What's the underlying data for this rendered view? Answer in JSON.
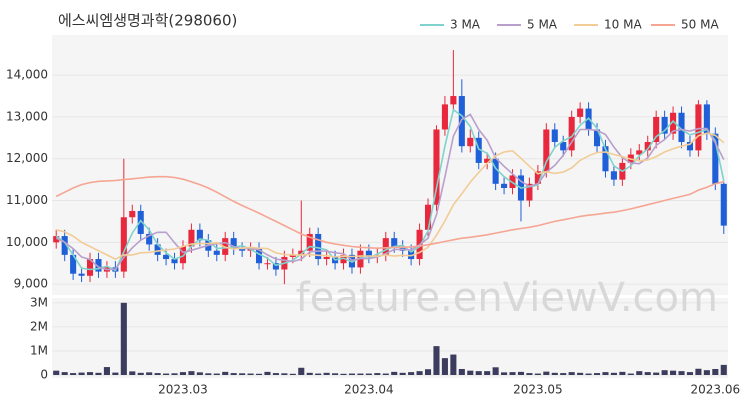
{
  "chart_data": [
    {
      "type": "candlestick",
      "title": "에스씨엠생명과학(298060)",
      "watermark": "feature.enViewV.com",
      "up_color": "#e8283c",
      "down_color": "#1f5fd8",
      "grid": true,
      "legend_position": "top-right",
      "ylim": [
        8740,
        14960
      ],
      "yticks": [
        {
          "value": 9000,
          "label": "9,000"
        },
        {
          "value": 10000,
          "label": "10,000"
        },
        {
          "value": 11000,
          "label": "11,000"
        },
        {
          "value": 12000,
          "label": "12,000"
        },
        {
          "value": 13000,
          "label": "13,000"
        },
        {
          "value": 14000,
          "label": "14,000"
        }
      ],
      "open": [
        10000,
        10150,
        9700,
        9250,
        9200,
        9600,
        9300,
        9400,
        9300,
        10600,
        10750,
        10200,
        9950,
        9700,
        9600,
        9500,
        9900,
        10300,
        10050,
        9800,
        9700,
        10100,
        9850,
        9800,
        9850,
        9500,
        9500,
        9350,
        9650,
        9700,
        9800,
        10200,
        9600,
        9650,
        9500,
        9700,
        9400,
        9800,
        9650,
        9700,
        10100,
        9900,
        9800,
        9600,
        10300,
        10900,
        12700,
        13300,
        13500,
        12300,
        12500,
        11900,
        12000,
        11400,
        11300,
        11600,
        11000,
        11400,
        11700,
        12700,
        12400,
        12200,
        13000,
        13200,
        12700,
        12300,
        11700,
        11500,
        11900,
        12100,
        12200,
        12400,
        13000,
        12600,
        13100,
        12400,
        12200,
        13300,
        12600,
        11400
      ],
      "high": [
        10300,
        10300,
        9850,
        9400,
        9750,
        9750,
        9550,
        9550,
        12000,
        10900,
        10900,
        10350,
        10100,
        9850,
        9750,
        10050,
        10450,
        10450,
        10200,
        9950,
        10250,
        10250,
        10000,
        10000,
        10000,
        9650,
        9650,
        9800,
        9850,
        11000,
        10350,
        10350,
        9800,
        9800,
        9850,
        9850,
        9950,
        9950,
        9850,
        10250,
        10250,
        10050,
        9950,
        10450,
        11050,
        12800,
        13500,
        14600,
        13900,
        12700,
        12650,
        12150,
        12150,
        11550,
        11750,
        11750,
        11550,
        11850,
        12850,
        12850,
        12550,
        13150,
        13350,
        13350,
        12850,
        12450,
        11850,
        12050,
        12250,
        12350,
        12550,
        13150,
        13150,
        13250,
        13250,
        12550,
        13400,
        13400,
        12750,
        11450
      ],
      "low": [
        9850,
        9550,
        9100,
        9050,
        9050,
        9150,
        9150,
        9150,
        9150,
        10450,
        10050,
        9800,
        9550,
        9450,
        9350,
        9350,
        9750,
        9900,
        9650,
        9550,
        9550,
        9700,
        9650,
        9650,
        9350,
        9350,
        9200,
        9000,
        9500,
        9550,
        9650,
        9450,
        9450,
        9350,
        9350,
        9250,
        9250,
        9500,
        9500,
        9550,
        9750,
        9650,
        9450,
        9450,
        10150,
        10750,
        12550,
        13150,
        12150,
        12150,
        11750,
        11750,
        11250,
        11150,
        11150,
        10500,
        10850,
        11250,
        11550,
        12250,
        12050,
        12050,
        12850,
        12550,
        12150,
        11550,
        11350,
        11350,
        11750,
        11950,
        12050,
        12250,
        12450,
        12450,
        12250,
        12050,
        12050,
        12450,
        11250,
        10200
      ],
      "close": [
        10150,
        9700,
        9250,
        9200,
        9600,
        9300,
        9400,
        9300,
        10600,
        10750,
        10200,
        9950,
        9700,
        9600,
        9500,
        9900,
        10300,
        10050,
        9800,
        9700,
        10100,
        9850,
        9800,
        9850,
        9500,
        9500,
        9350,
        9650,
        9700,
        9800,
        10200,
        9600,
        9650,
        9500,
        9700,
        9400,
        9800,
        9650,
        9700,
        10100,
        9900,
        9800,
        9600,
        10300,
        10900,
        12700,
        13300,
        13500,
        12300,
        12500,
        11900,
        12000,
        11400,
        11300,
        11600,
        11000,
        11400,
        11700,
        12700,
        12400,
        12200,
        13000,
        13200,
        12700,
        12300,
        11700,
        11500,
        11900,
        12100,
        12200,
        12400,
        13000,
        12600,
        13100,
        12400,
        12200,
        13300,
        12600,
        11400,
        10400
      ],
      "series": [
        {
          "name": "3 MA",
          "color": "#7fd3cc",
          "values": [
            10150,
            10000,
            9700,
            9380,
            9350,
            9370,
            9430,
            9330,
            9770,
            10220,
            10520,
            10300,
            9950,
            9750,
            9600,
            9670,
            9900,
            10080,
            10050,
            9850,
            9870,
            9880,
            9920,
            9830,
            9720,
            9620,
            9450,
            9500,
            9570,
            9720,
            9900,
            9870,
            9820,
            9580,
            9620,
            9530,
            9630,
            9620,
            9720,
            9820,
            9900,
            9930,
            9770,
            9900,
            10270,
            11300,
            12300,
            13170,
            13030,
            12770,
            12230,
            12130,
            11770,
            11570,
            11430,
            11300,
            11330,
            11370,
            11930,
            12270,
            12430,
            12530,
            12800,
            12970,
            12730,
            12230,
            11830,
            11700,
            11830,
            12070,
            12230,
            12530,
            12670,
            12900,
            12700,
            12570,
            12630,
            12700,
            12430,
            11470
          ]
        },
        {
          "name": "5 MA",
          "color": "#b9a0cc",
          "values": [
            10100,
            10000,
            9850,
            9650,
            9590,
            9410,
            9350,
            9360,
            9640,
            9870,
            10050,
            10160,
            10240,
            10240,
            9990,
            9760,
            9810,
            9870,
            9930,
            9970,
            9990,
            9900,
            9850,
            9860,
            9820,
            9700,
            9600,
            9570,
            9540,
            9600,
            9770,
            9790,
            9790,
            9750,
            9730,
            9570,
            9610,
            9610,
            9650,
            9730,
            9830,
            9830,
            9820,
            9940,
            10100,
            10660,
            11560,
            12540,
            12940,
            13060,
            12700,
            12440,
            12020,
            11820,
            11640,
            11460,
            11340,
            11400,
            11680,
            11840,
            12080,
            12400,
            12700,
            12700,
            12680,
            12580,
            12280,
            12020,
            11900,
            11880,
            12020,
            12320,
            12460,
            12660,
            12700,
            12660,
            12720,
            12720,
            12380,
            11980
          ]
        },
        {
          "name": "10 MA",
          "color": "#f2cc96",
          "values": [
            10300,
            10250,
            10150,
            10000,
            9900,
            9800,
            9700,
            9600,
            9700,
            9700,
            9750,
            9760,
            9790,
            9820,
            9840,
            9900,
            9960,
            9970,
            9970,
            9990,
            9880,
            9840,
            9860,
            9880,
            9860,
            9850,
            9750,
            9710,
            9700,
            9700,
            9710,
            9690,
            9680,
            9650,
            9670,
            9660,
            9670,
            9670,
            9670,
            9700,
            9670,
            9690,
            9680,
            9760,
            9880,
            10170,
            10510,
            10900,
            11160,
            11440,
            11670,
            11890,
            12070,
            12160,
            12190,
            12010,
            11820,
            11640,
            11690,
            11650,
            11680,
            11780,
            11960,
            12070,
            12150,
            12160,
            12100,
            12050,
            11990,
            11950,
            11970,
            12050,
            12160,
            12240,
            12300,
            12350,
            12550,
            12610,
            12560,
            12380
          ]
        },
        {
          "name": "50 MA",
          "color": "#f5a592",
          "values": [
            11100,
            11200,
            11300,
            11380,
            11430,
            11460,
            11470,
            11480,
            11500,
            11520,
            11540,
            11560,
            11570,
            11570,
            11550,
            11510,
            11450,
            11380,
            11300,
            11200,
            11090,
            10980,
            10880,
            10790,
            10700,
            10600,
            10500,
            10400,
            10300,
            10200,
            10120,
            10060,
            10000,
            9960,
            9930,
            9900,
            9880,
            9870,
            9860,
            9870,
            9880,
            9880,
            9890,
            9910,
            9940,
            9980,
            10020,
            10060,
            10100,
            10120,
            10150,
            10180,
            10220,
            10260,
            10300,
            10330,
            10360,
            10400,
            10450,
            10500,
            10540,
            10580,
            10620,
            10650,
            10670,
            10700,
            10720,
            10760,
            10800,
            10850,
            10900,
            10950,
            11000,
            11050,
            11100,
            11150,
            11250,
            11320,
            11400,
            11450
          ]
        }
      ]
    },
    {
      "type": "bar",
      "color": "#3c3c5e",
      "ylim": [
        0,
        3200000
      ],
      "yticks": [
        {
          "value": 0,
          "label": "0"
        },
        {
          "value": 1000000,
          "label": "1M"
        },
        {
          "value": 2000000,
          "label": "2M"
        },
        {
          "value": 3000000,
          "label": "3M"
        }
      ],
      "categories": [
        null,
        null,
        null,
        null,
        null,
        null,
        null,
        null,
        null,
        null,
        null,
        null,
        null,
        null,
        null,
        "2023.03",
        null,
        null,
        null,
        null,
        null,
        null,
        null,
        null,
        null,
        null,
        null,
        null,
        null,
        null,
        null,
        null,
        null,
        null,
        null,
        null,
        null,
        "2023.04",
        null,
        null,
        null,
        null,
        null,
        null,
        null,
        null,
        null,
        null,
        null,
        null,
        null,
        null,
        null,
        null,
        null,
        null,
        null,
        "2023.05",
        null,
        null,
        null,
        null,
        null,
        null,
        null,
        null,
        null,
        null,
        null,
        null,
        null,
        null,
        null,
        null,
        null,
        null,
        null,
        null,
        "2023.06",
        null
      ],
      "values": [
        180000,
        120000,
        80000,
        100000,
        120000,
        90000,
        330000,
        100000,
        3000000,
        150000,
        90000,
        110000,
        80000,
        60000,
        70000,
        120000,
        160000,
        110000,
        70000,
        60000,
        130000,
        80000,
        70000,
        60000,
        50000,
        130000,
        80000,
        70000,
        50000,
        300000,
        90000,
        60000,
        90000,
        70000,
        50000,
        60000,
        60000,
        60000,
        80000,
        60000,
        130000,
        90000,
        120000,
        160000,
        240000,
        1200000,
        700000,
        850000,
        250000,
        180000,
        160000,
        160000,
        320000,
        110000,
        120000,
        130000,
        80000,
        60000,
        140000,
        90000,
        80000,
        120000,
        90000,
        60000,
        80000,
        120000,
        90000,
        130000,
        60000,
        160000,
        120000,
        100000,
        200000,
        180000,
        160000,
        120000,
        260000,
        200000,
        250000,
        420000
      ]
    }
  ]
}
